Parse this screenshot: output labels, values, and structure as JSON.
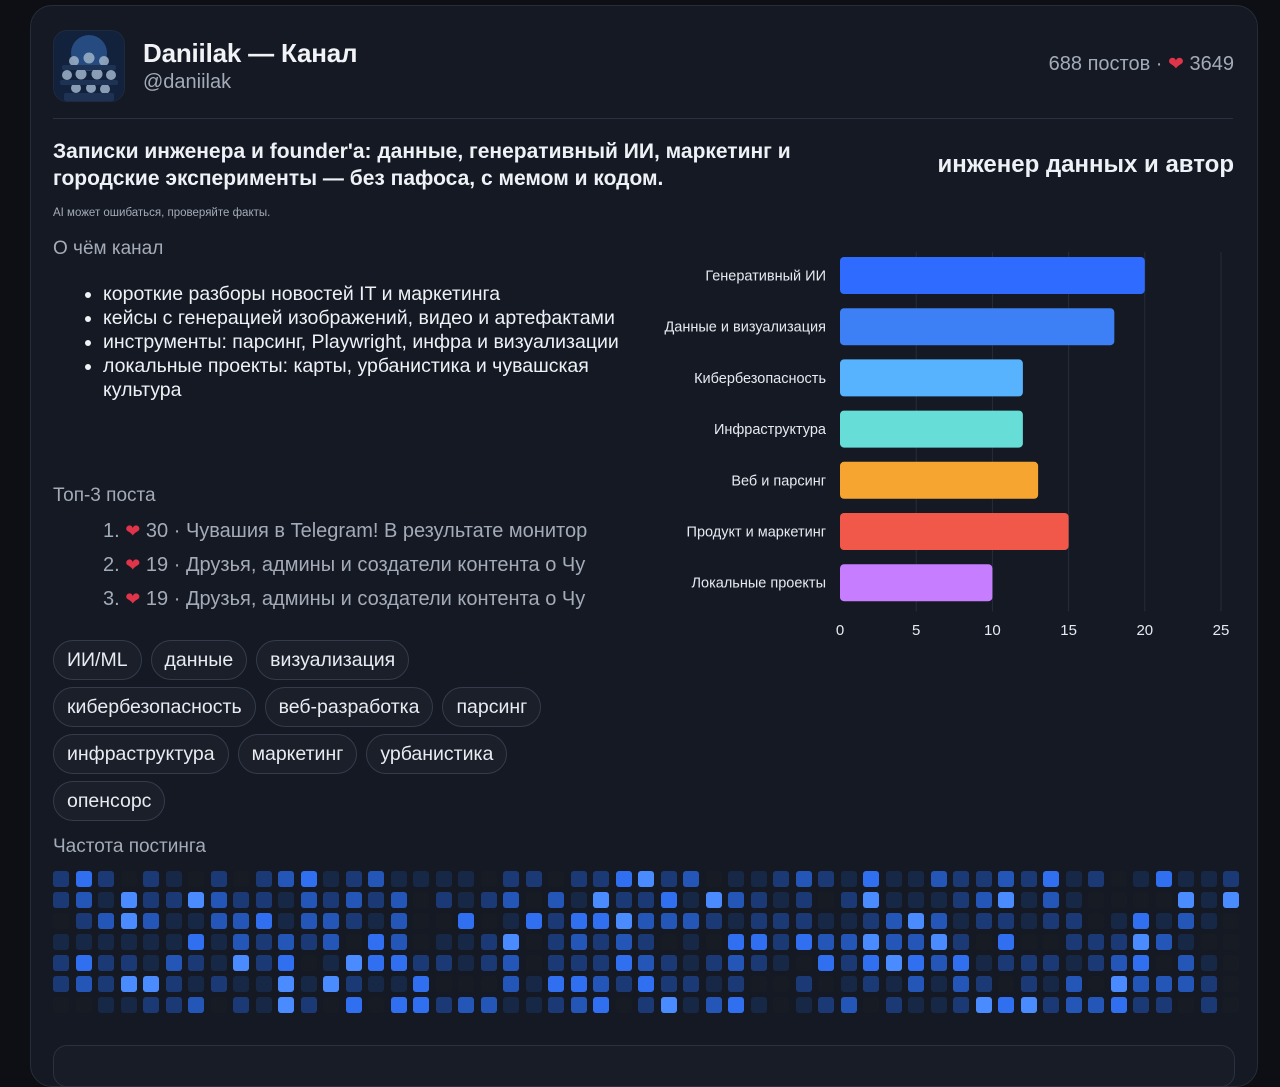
{
  "header": {
    "title": "Daniilak — Канал",
    "handle": "@daniilak",
    "posts": "688 постов",
    "separator": "·",
    "likes": "3649",
    "heart_icon": "heart-icon"
  },
  "intro": {
    "description": "Записки инженера и founder'a: данные, генеративный ИИ, маркетинг и городские эксперименты — без пафоса, с мемом и кодом.",
    "role": "инженер данных и автор",
    "disclaimer": "AI может ошибаться, проверяйте факты."
  },
  "about": {
    "label": "О чём канал",
    "items": [
      "короткие разборы новостей IT и маркетинга",
      "кейсы с генерацией изображений, видео и артефактами",
      "инструменты: парсинг, Playwright, инфра и визуализации",
      "локальные проекты: карты, урбанистика и чувашская культура"
    ]
  },
  "top_posts": {
    "label": "Топ-3 поста",
    "items": [
      {
        "num": "1.",
        "likes": "30",
        "sep": "·",
        "text": "Чувашия в Telegram! В результате монитор"
      },
      {
        "num": "2.",
        "likes": "19",
        "sep": "·",
        "text": "Друзья, админы и создатели контента о Чу"
      },
      {
        "num": "3.",
        "likes": "19",
        "sep": "·",
        "text": "Друзья, админы и создатели контента о Чу"
      }
    ]
  },
  "tags": [
    [
      "ИИ/ML",
      "данные",
      "визуализация"
    ],
    [
      "кибербезопасность",
      "веб-разработка",
      "парсинг"
    ],
    [
      "инфраструктура",
      "маркетинг",
      "урбанистика"
    ],
    [
      "опенсорс"
    ]
  ],
  "frequency": {
    "label": "Частота постинга",
    "weeks": 53,
    "days": 7,
    "palette": [
      "#171b24",
      "#172846",
      "#1b3a75",
      "#2456b8",
      "#2f6ff0",
      "#4a8cff"
    ]
  },
  "chart_data": {
    "type": "bar",
    "orientation": "horizontal",
    "categories": [
      "Генеративный ИИ",
      "Данные и визуализация",
      "Кибербезопасность",
      "Инфраструктура",
      "Веб и парсинг",
      "Продукт и маркетинг",
      "Локальные проекты"
    ],
    "values": [
      20,
      18,
      12,
      12,
      13,
      15,
      10
    ],
    "colors": [
      "#2f6bff",
      "#3d7ff5",
      "#58b3ff",
      "#67ddd8",
      "#f7a531",
      "#f2584a",
      "#c77dff"
    ],
    "xlim": [
      0,
      25
    ],
    "xticks": [
      0,
      5,
      10,
      15,
      20,
      25
    ],
    "grid": true
  }
}
